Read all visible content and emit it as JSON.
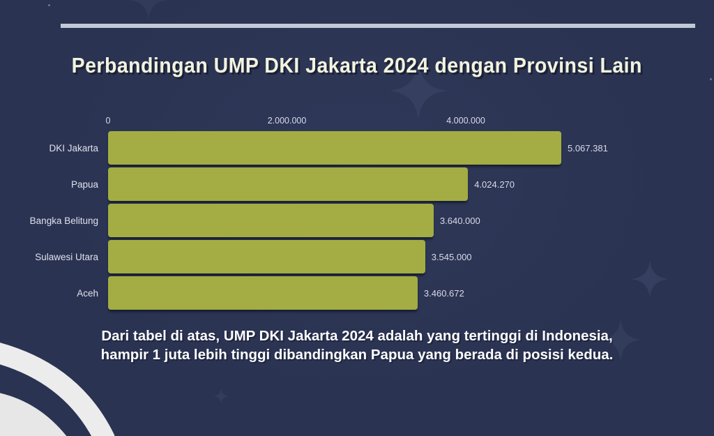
{
  "page": {
    "title": "Perbandingan UMP DKI Jakarta 2024 dengan Provinsi Lain",
    "caption_lines": [
      "Dari tabel di atas, UMP DKI Jakarta 2024 adalah yang tertinggi di Indonesia,",
      "hampir 1 juta lebih tinggi dibandingkan Papua yang berada di posisi kedua."
    ]
  },
  "chart_data": {
    "type": "bar",
    "orientation": "horizontal",
    "title": "Perbandingan UMP DKI Jakarta 2024 dengan Provinsi Lain",
    "categories": [
      "DKI Jakarta",
      "Papua",
      "Bangka Belitung",
      "Sulawesi Utara",
      "Aceh"
    ],
    "values": [
      5067381,
      4024270,
      3640000,
      3545000,
      3460672
    ],
    "value_labels": [
      "5.067.381",
      "4.024.270",
      "3.640.000",
      "3.545.000",
      "3.460.672"
    ],
    "x_ticks": [
      0,
      2000000,
      4000000
    ],
    "x_tick_labels": [
      "0",
      "2.000.000",
      "4.000.000"
    ],
    "xlim": [
      0,
      5200000
    ],
    "xlabel": "",
    "ylabel": "",
    "grid": false,
    "legend": false,
    "bar_color": "#a3ad43"
  },
  "colors": {
    "background": "#2b3352",
    "bar": "#a3ad43",
    "title_text": "#f2f3e0",
    "axis_text": "#d7dcea",
    "category_text": "#dde2ee",
    "caption_text": "#fdfdff",
    "top_rule": "#c3cad7",
    "sparkle": "#3d4768",
    "swoosh": "#ebebeb"
  }
}
